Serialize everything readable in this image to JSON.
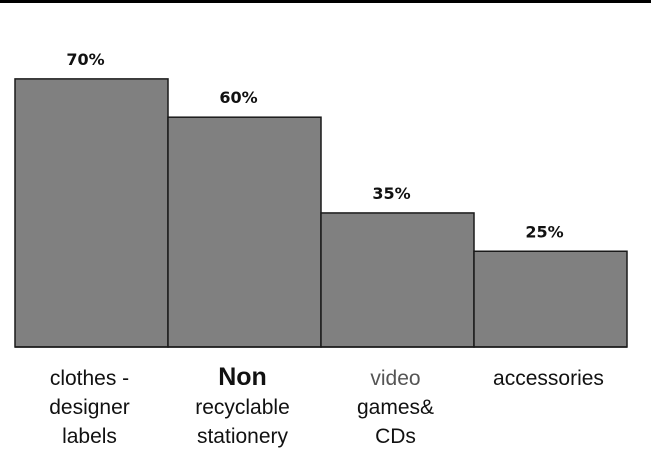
{
  "chart_data": {
    "type": "bar",
    "categories": [
      [
        "clothes -",
        "designer",
        "labels"
      ],
      [
        "Non",
        "recyclable",
        "stationery"
      ],
      [
        "video",
        "games&",
        "CDs"
      ],
      [
        "accessories"
      ]
    ],
    "values": [
      70,
      60,
      35,
      25
    ],
    "value_labels": [
      "70%",
      "60%",
      "35%",
      "25%"
    ],
    "title": "",
    "xlabel": "",
    "ylabel": "",
    "ylim": [
      0,
      100
    ],
    "grid": false,
    "legend": "none",
    "colors": {
      "bar": "#808080",
      "bar_edge": "#1a1a1a",
      "baseline": "#1a1a1a"
    }
  }
}
